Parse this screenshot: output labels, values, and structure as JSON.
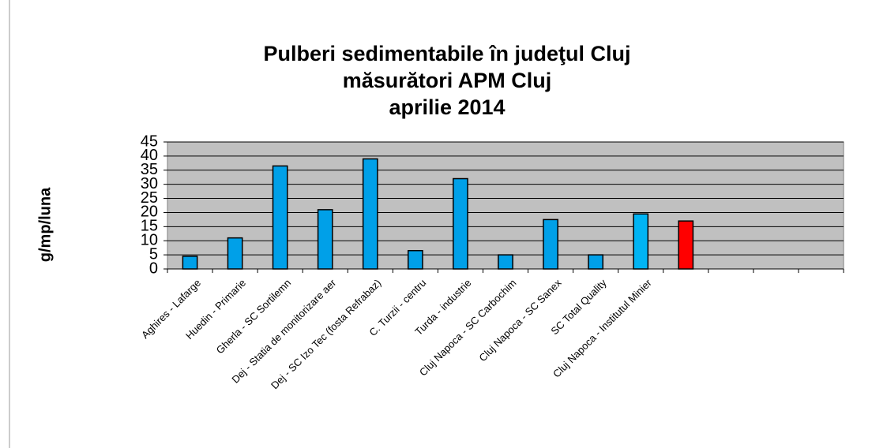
{
  "chart_data": {
    "type": "bar",
    "title": [
      "Pulberi sedimentabile în judeţul Cluj",
      "măsurători APM Cluj",
      "aprilie 2014"
    ],
    "ylabel": "g/mp/luna",
    "categories": [
      "Aghires - Lafarge",
      "Huedin - Primarie",
      "Gherla - SC Sortilemn",
      "Dej - Statia de monitorizare aer",
      "Dej - SC Izo Tec (fosta Refrabaz)",
      "C. Turzii - centru",
      "Turda - industrie",
      "Cluj Napoca - SC Carbochim",
      "Cluj Napoca - SC Sanex",
      "SC Total Quality",
      "Cluj Napoca - Institutul Minier",
      null,
      null,
      null,
      null
    ],
    "values": [
      4.5,
      11,
      36.5,
      21,
      39,
      6.5,
      32,
      5,
      17.5,
      5,
      19.5,
      17,
      null,
      null,
      null
    ],
    "colors": [
      "#00a0e8",
      "#00a0e8",
      "#00a0e8",
      "#00a0e8",
      "#00a0e8",
      "#00a0e8",
      "#00a0e8",
      "#00a0e8",
      "#00a0e8",
      "#00a0e8",
      "#00b4f4",
      "#ff0000",
      null,
      null,
      null
    ],
    "ylim": [
      0,
      45
    ],
    "yticks": [
      0,
      5,
      10,
      15,
      20,
      25,
      30,
      35,
      40,
      45
    ],
    "grid": true,
    "plot_background": "#c0c0c0"
  }
}
